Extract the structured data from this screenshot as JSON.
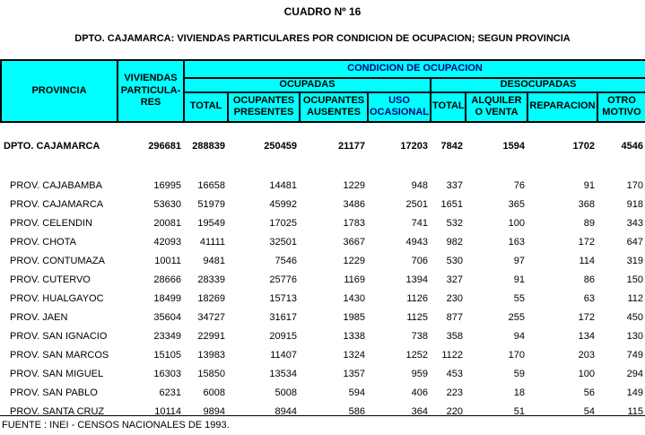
{
  "title": "CUADRO Nº 16",
  "subtitle": "DPTO. CAJAMARCA: VIVIENDAS PARTICULARES POR CONDICION DE OCUPACION; SEGUN PROVINCIA",
  "colors": {
    "header_bg": "#00ffff",
    "header_accent_text": "#000080",
    "text": "#000000"
  },
  "table": {
    "header": {
      "provincia": "PROVINCIA",
      "viviendas_lines": [
        "VIVIENDAS",
        "PARTICULA-",
        "RES"
      ],
      "condicion": "CONDICION DE OCUPACION",
      "ocupadas": "OCUPADAS",
      "desocupadas": "DESOCUPADAS",
      "sub": [
        "TOTAL",
        "OCUPANTES PRESENTES",
        "OCUPANTES AUSENTES",
        "USO OCASIONAL",
        "TOTAL",
        "ALQUILER O VENTA",
        "REPARACION",
        "OTRO MOTIVO"
      ]
    },
    "total_row": {
      "name": "DPTO. CAJAMARCA",
      "values": [
        296681,
        288839,
        250459,
        21177,
        17203,
        7842,
        1594,
        1702,
        4546
      ]
    },
    "rows": [
      {
        "name": "PROV.  CAJABAMBA",
        "values": [
          16995,
          16658,
          14481,
          1229,
          948,
          337,
          76,
          91,
          170
        ]
      },
      {
        "name": "PROV.  CAJAMARCA",
        "values": [
          53630,
          51979,
          45992,
          3486,
          2501,
          1651,
          365,
          368,
          918
        ]
      },
      {
        "name": "PROV.  CELENDIN",
        "values": [
          20081,
          19549,
          17025,
          1783,
          741,
          532,
          100,
          89,
          343
        ]
      },
      {
        "name": "PROV.  CHOTA",
        "values": [
          42093,
          41111,
          32501,
          3667,
          4943,
          982,
          163,
          172,
          647
        ]
      },
      {
        "name": "PROV.  CONTUMAZA",
        "values": [
          10011,
          9481,
          7546,
          1229,
          706,
          530,
          97,
          114,
          319
        ]
      },
      {
        "name": "PROV.  CUTERVO",
        "values": [
          28666,
          28339,
          25776,
          1169,
          1394,
          327,
          91,
          86,
          150
        ]
      },
      {
        "name": "PROV.  HUALGAYOC",
        "values": [
          18499,
          18269,
          15713,
          1430,
          1126,
          230,
          55,
          63,
          112
        ]
      },
      {
        "name": "PROV.  JAEN",
        "values": [
          35604,
          34727,
          31617,
          1985,
          1125,
          877,
          255,
          172,
          450
        ]
      },
      {
        "name": "PROV.  SAN IGNACIO",
        "values": [
          23349,
          22991,
          20915,
          1338,
          738,
          358,
          94,
          134,
          130
        ]
      },
      {
        "name": "PROV.  SAN MARCOS",
        "values": [
          15105,
          13983,
          11407,
          1324,
          1252,
          1122,
          170,
          203,
          749
        ]
      },
      {
        "name": "PROV.  SAN MIGUEL",
        "values": [
          16303,
          15850,
          13534,
          1357,
          959,
          453,
          59,
          100,
          294
        ]
      },
      {
        "name": "PROV.  SAN PABLO",
        "values": [
          6231,
          6008,
          5008,
          594,
          406,
          223,
          18,
          56,
          149
        ]
      },
      {
        "name": "PROV.  SANTA CRUZ",
        "values": [
          10114,
          9894,
          8944,
          586,
          364,
          220,
          51,
          54,
          115
        ]
      }
    ]
  },
  "footer": "FUENTE : INEI - CENSOS NACIONALES DE 1993."
}
